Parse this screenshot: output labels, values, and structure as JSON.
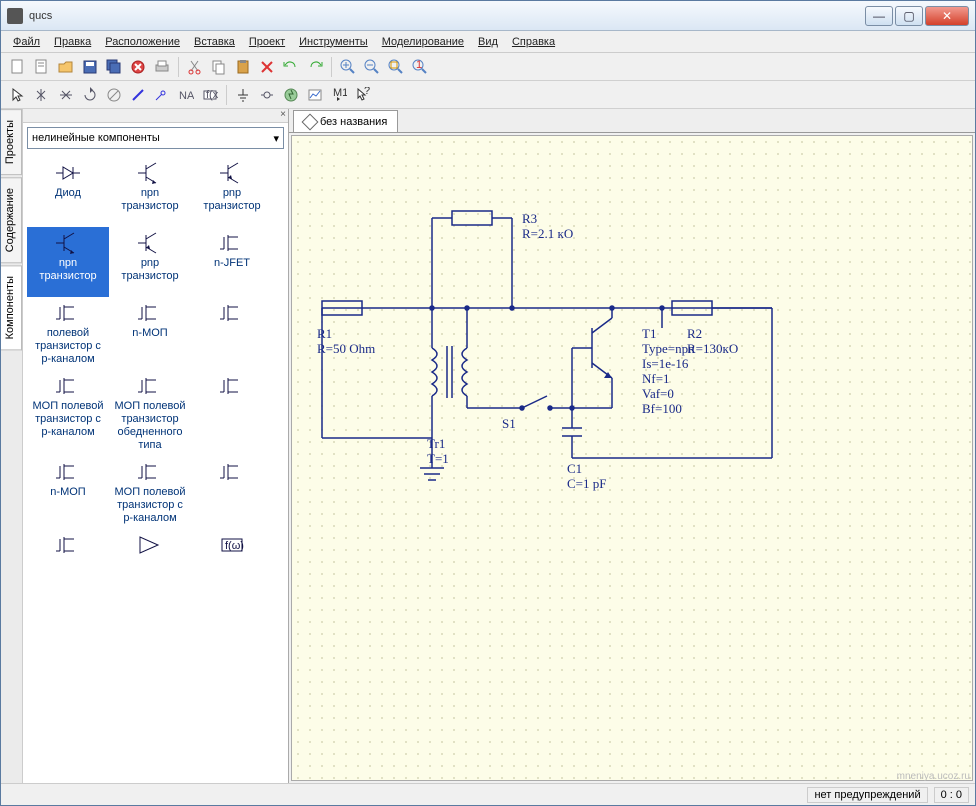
{
  "window": {
    "title": "qucs"
  },
  "menu": [
    "Файл",
    "Правка",
    "Расположение",
    "Вставка",
    "Проект",
    "Инструменты",
    "Моделирование",
    "Вид",
    "Справка"
  ],
  "sidetabs": [
    "Проекты",
    "Содержание",
    "Компоненты"
  ],
  "combo": {
    "value": "нелинейные компоненты"
  },
  "palette": [
    {
      "label": "Диод"
    },
    {
      "label": "npn транзистор"
    },
    {
      "label": "pnp транзистор"
    },
    {
      "label": "npn транзистор",
      "selected": true
    },
    {
      "label": "pnp транзистор"
    },
    {
      "label": "n-JFET"
    },
    {
      "label": "полевой транзистор с p-каналом"
    },
    {
      "label": "n-МОП"
    },
    {
      "label": ""
    },
    {
      "label": "МОП полевой транзистор с p-каналом"
    },
    {
      "label": "МОП полевой транзистор обедненного типа"
    },
    {
      "label": ""
    },
    {
      "label": "n-МОП"
    },
    {
      "label": "МОП полевой транзистор с p-каналом"
    },
    {
      "label": ""
    }
  ],
  "doctab": {
    "title": "без названия"
  },
  "schematic": {
    "wire_color": "#1a2a88",
    "text_color": "#1a2a88",
    "components": {
      "R3": {
        "name": "R3",
        "value": "R=2.1 кО"
      },
      "R1": {
        "name": "R1",
        "value": "R=50 Ohm"
      },
      "R2": {
        "name": "R2",
        "value": "R=130кО"
      },
      "T1": {
        "name": "T1",
        "p1": "Type=npn",
        "p2": "Is=1e-16",
        "p3": "Nf=1",
        "p4": "Vaf=0",
        "p5": "Bf=100"
      },
      "C1": {
        "name": "C1",
        "value": "C=1 pF"
      },
      "S1": {
        "name": "S1"
      },
      "Tr1": {
        "name": "Tr1",
        "value": "T=1"
      },
      "T_label": "T"
    }
  },
  "status": {
    "warnings": "нет предупреждений",
    "coords": "0 : 0"
  },
  "watermark": "mneniya.ucoz.ru"
}
